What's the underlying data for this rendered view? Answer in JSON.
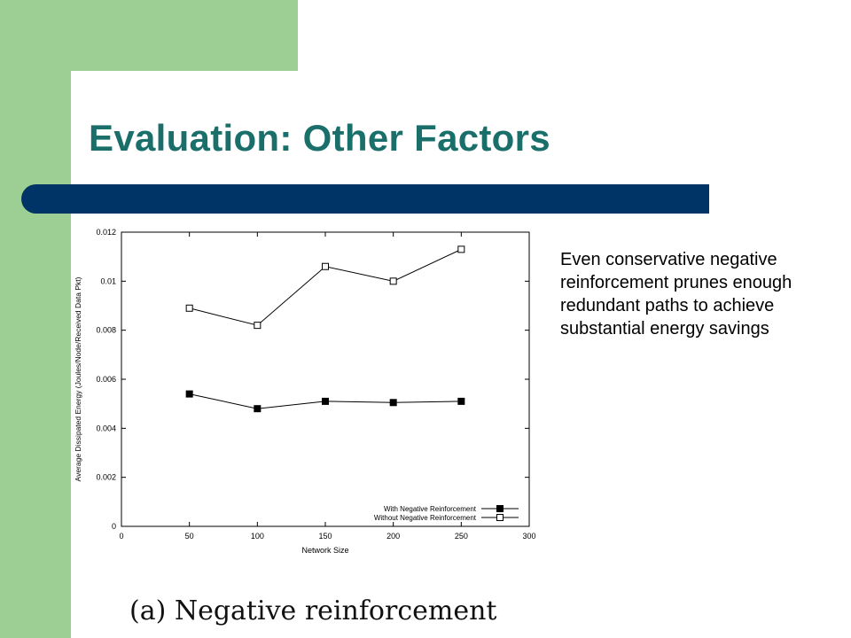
{
  "slide": {
    "title": "Evaluation: Other Factors",
    "body_text": "Even conservative negative reinforcement prunes enough redundant paths to achieve substantial energy savings",
    "caption": "(a) Negative reinforcement"
  },
  "colors": {
    "green_accent": "#9dcf94",
    "navy_bar": "#003366",
    "title_teal": "#1a6f6a"
  },
  "chart_data": {
    "type": "line",
    "title": "",
    "xlabel": "Network Size",
    "ylabel": "Average Dissipated Energy (Joules/Node/Received Data Pkt)",
    "xlim": [
      0,
      300
    ],
    "ylim": [
      0,
      0.012
    ],
    "x_ticks": [
      "0",
      "50",
      "100",
      "150",
      "200",
      "250",
      "300"
    ],
    "y_ticks": [
      "0",
      "0.002",
      "0.004",
      "0.006",
      "0.008",
      "0.01",
      "0.012"
    ],
    "legend_position": "bottom-right",
    "grid": false,
    "series": [
      {
        "name": "With Negative Reinforcement",
        "marker": "filled-square",
        "x": [
          50,
          100,
          150,
          200,
          250
        ],
        "values": [
          0.0054,
          0.0048,
          0.0051,
          0.00505,
          0.0051
        ]
      },
      {
        "name": "Without Negative Reinforcement",
        "marker": "open-square",
        "x": [
          50,
          100,
          150,
          200,
          250
        ],
        "values": [
          0.0089,
          0.0082,
          0.0106,
          0.01,
          0.0113
        ]
      }
    ]
  }
}
